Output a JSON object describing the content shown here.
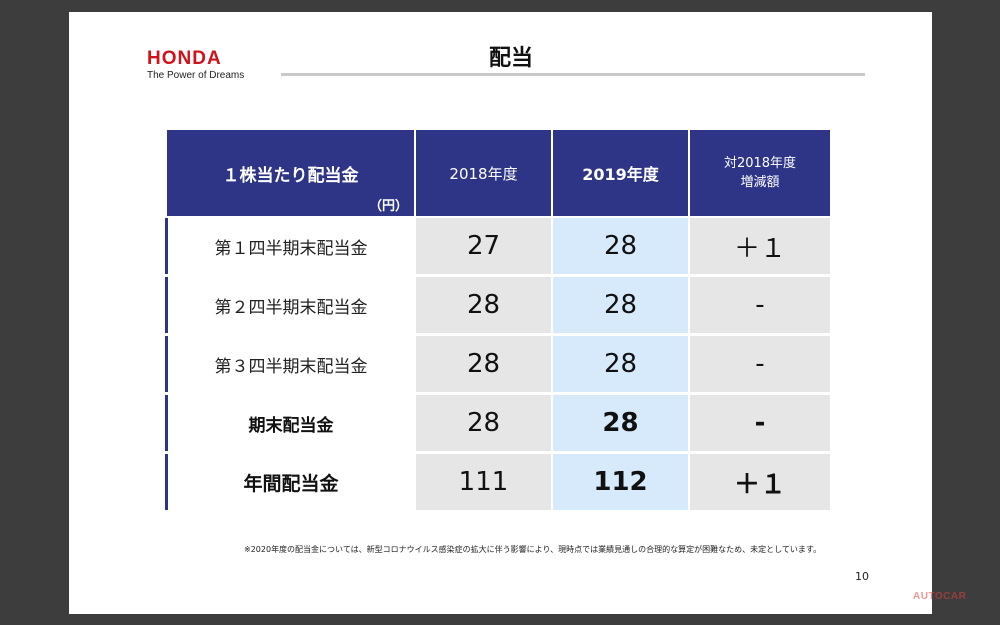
{
  "brand": {
    "name": "HONDA",
    "tagline": "The Power of Dreams",
    "color": "#d0121b"
  },
  "title": "配当",
  "table": {
    "header": {
      "label": "１株当たり配当金",
      "unit": "（円）",
      "col1": "2018年度",
      "col2": "2019年度",
      "col3_line1": "対2018年度",
      "col3_line2": "増減額"
    },
    "rows": [
      {
        "label": "第１四半期末配当金",
        "v2018": "27",
        "v2019": "28",
        "diff": "＋１"
      },
      {
        "label": "第２四半期末配当金",
        "v2018": "28",
        "v2019": "28",
        "diff": "-"
      },
      {
        "label": "第３四半期末配当金",
        "v2018": "28",
        "v2019": "28",
        "diff": "-"
      },
      {
        "label": "期末配当金",
        "v2018": "28",
        "v2019": "28",
        "diff": "-"
      },
      {
        "label": "年間配当金",
        "v2018": "111",
        "v2019": "112",
        "diff": "＋１"
      }
    ]
  },
  "footnote": "※2020年度の配当金については、新型コロナウイルス感染症の拡大に伴う影響により、現時点では業績見通しの合理的な算定が困難なため、未定としています。",
  "page_number": "10",
  "watermark": "AUTOCAR",
  "colors": {
    "header_bg": "#2e3587",
    "cell_gray": "#e6e6e6",
    "cell_blue": "#d6eafb"
  }
}
